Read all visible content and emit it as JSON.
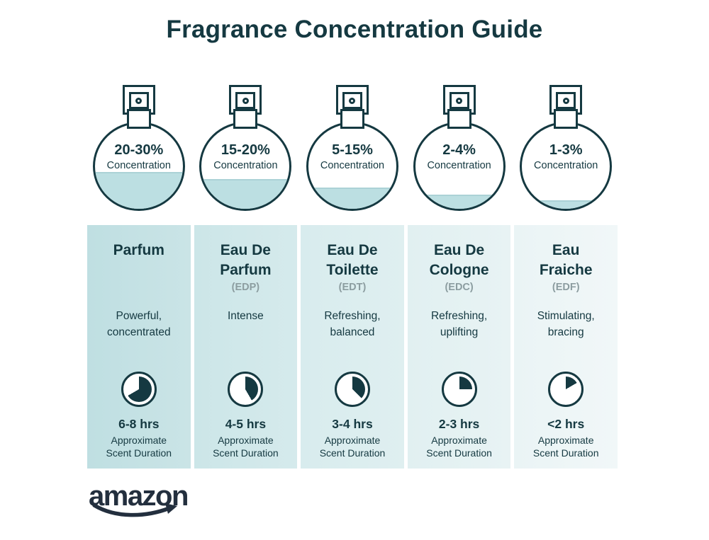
{
  "page": {
    "title": "Fragrance Concentration Guide",
    "colors": {
      "ink": "#153941",
      "abbr_gray": "#8c9da0",
      "liquid": "#bcdfe2",
      "liquid_edge": "#abd2d6",
      "logo": "#232f3e",
      "background": "#ffffff"
    }
  },
  "labels": {
    "concentration": "Concentration",
    "approximate": "Approximate",
    "scent_duration": "Scent Duration"
  },
  "brand": {
    "logo_text": "amazon"
  },
  "cards": [
    {
      "concentration": "20-30%",
      "fill_percent": 43,
      "name": "Parfum",
      "abbr": "",
      "description": "Powerful, concentrated",
      "clock_degrees": 240,
      "duration": "6-8 hrs",
      "bg_left": "#bfdfe2",
      "bg_right": "#cae4e6"
    },
    {
      "concentration": "15-20%",
      "fill_percent": 35,
      "name": "Eau De Parfum",
      "abbr": "(EDP)",
      "description": "Intense",
      "clock_degrees": 150,
      "duration": "4-5 hrs",
      "bg_left": "#cce6e8",
      "bg_right": "#d5eaec"
    },
    {
      "concentration": "5-15%",
      "fill_percent": 25,
      "name": "Eau De Toilette",
      "abbr": "(EDT)",
      "description": "Refreshing, balanced",
      "clock_degrees": 135,
      "duration": "3-4 hrs",
      "bg_left": "#d8ecee",
      "bg_right": "#dfeff0"
    },
    {
      "concentration": "2-4%",
      "fill_percent": 17,
      "name": "Eau De Cologne",
      "abbr": "(EDC)",
      "description": "Refreshing, uplifting",
      "clock_degrees": 90,
      "duration": "2-3 hrs",
      "bg_left": "#e1f0f1",
      "bg_right": "#e8f3f4"
    },
    {
      "concentration": "1-3%",
      "fill_percent": 10,
      "name": "Eau Fraiche",
      "abbr": "(EDF)",
      "description": "Stimulating, bracing",
      "clock_degrees": 60,
      "duration": "<2 hrs",
      "bg_left": "#eaf4f5",
      "bg_right": "#f1f7f8"
    }
  ]
}
